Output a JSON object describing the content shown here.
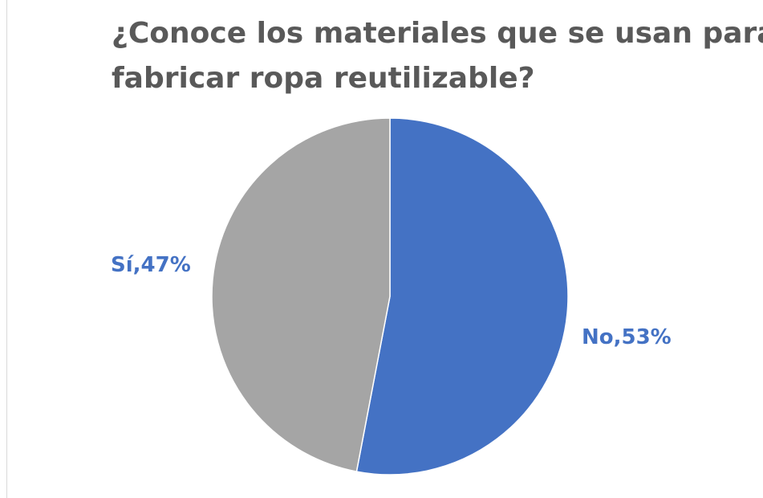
{
  "chart_data": {
    "type": "pie",
    "title_lines": [
      "¿Conoce los materiales que se usan para",
      "fabricar ropa reutilizable?"
    ],
    "categories": [
      "No",
      "Sí"
    ],
    "values": [
      53,
      47
    ],
    "labels": [
      "No,53%",
      "Sí,47%"
    ],
    "colors": [
      "#4472C4",
      "#A5A5A5"
    ],
    "label_color": "#4472C4",
    "legend": "none"
  }
}
